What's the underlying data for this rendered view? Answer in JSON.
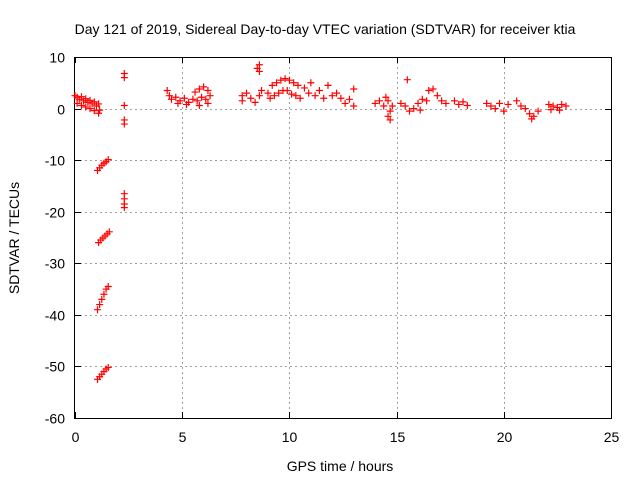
{
  "chart_data": {
    "type": "scatter",
    "title": "Day 121 of 2019, Sidereal Day-to-day VTEC variation (SDTVAR) for receiver ktia",
    "xlabel": "GPS time / hours",
    "ylabel": "SDTVAR / TECUs",
    "xlim": [
      0,
      25
    ],
    "ylim": [
      -60,
      10
    ],
    "xticks": [
      "0",
      "5",
      "10",
      "15",
      "20",
      "25"
    ],
    "xtick_values": [
      0,
      5,
      10,
      15,
      20,
      25
    ],
    "yticks": [
      "10",
      "0",
      "-10",
      "-20",
      "-30",
      "-40",
      "-50",
      "-60"
    ],
    "ytick_values": [
      10,
      0,
      -10,
      -20,
      -30,
      -40,
      -50,
      -60
    ],
    "grid": true,
    "marker": "plus",
    "color": "#ff0000",
    "series": [
      {
        "points": [
          [
            0.0,
            2.5
          ],
          [
            0.1,
            2.2
          ],
          [
            0.2,
            1.8
          ],
          [
            0.3,
            2.3
          ],
          [
            0.4,
            1.5
          ],
          [
            0.5,
            1.9
          ],
          [
            0.6,
            1.2
          ],
          [
            0.7,
            1.6
          ],
          [
            0.8,
            0.9
          ],
          [
            0.9,
            1.3
          ],
          [
            1.0,
            0.5
          ],
          [
            1.1,
            0.9
          ],
          [
            1.15,
            -0.3
          ],
          [
            0.1,
            1.0
          ],
          [
            0.3,
            0.6
          ],
          [
            0.5,
            0.3
          ],
          [
            0.7,
            0.0
          ],
          [
            0.9,
            -0.4
          ],
          [
            1.1,
            -0.9
          ],
          [
            1.05,
            -12.0
          ],
          [
            1.15,
            -11.5
          ],
          [
            1.25,
            -11.0
          ],
          [
            1.35,
            -10.6
          ],
          [
            1.45,
            -10.3
          ],
          [
            1.55,
            -9.9
          ],
          [
            1.1,
            -26.0
          ],
          [
            1.2,
            -25.5
          ],
          [
            1.3,
            -25.1
          ],
          [
            1.4,
            -24.7
          ],
          [
            1.5,
            -24.3
          ],
          [
            1.6,
            -23.9
          ],
          [
            1.05,
            -39.0
          ],
          [
            1.15,
            -38.0
          ],
          [
            1.25,
            -37.0
          ],
          [
            1.35,
            -36.0
          ],
          [
            1.45,
            -35.0
          ],
          [
            1.55,
            -34.5
          ],
          [
            1.05,
            -52.5
          ],
          [
            1.15,
            -52.0
          ],
          [
            1.25,
            -51.5
          ],
          [
            1.35,
            -51.0
          ],
          [
            1.45,
            -50.5
          ],
          [
            1.55,
            -50.2
          ],
          [
            2.3,
            6.8
          ],
          [
            2.3,
            6.0
          ],
          [
            2.3,
            0.6
          ],
          [
            2.3,
            -2.2
          ],
          [
            2.3,
            -3.0
          ],
          [
            2.3,
            -16.5
          ],
          [
            2.3,
            -17.5
          ],
          [
            2.3,
            -18.5
          ],
          [
            2.3,
            -19.2
          ],
          [
            4.3,
            3.5
          ],
          [
            4.4,
            2.5
          ],
          [
            4.5,
            1.8
          ],
          [
            4.7,
            2.2
          ],
          [
            4.9,
            1.5
          ],
          [
            5.1,
            2.0
          ],
          [
            5.3,
            1.2
          ],
          [
            5.5,
            1.8
          ],
          [
            5.7,
            1.5
          ],
          [
            5.9,
            2.2
          ],
          [
            6.1,
            1.8
          ],
          [
            6.3,
            2.5
          ],
          [
            5.6,
            3.2
          ],
          [
            5.8,
            3.8
          ],
          [
            6.0,
            4.2
          ],
          [
            6.2,
            3.5
          ],
          [
            4.8,
            1.0
          ],
          [
            5.2,
            0.8
          ],
          [
            5.8,
            0.6
          ],
          [
            6.2,
            1.0
          ],
          [
            7.8,
            2.5
          ],
          [
            7.8,
            1.5
          ],
          [
            8.0,
            3.0
          ],
          [
            8.2,
            2.0
          ],
          [
            8.4,
            1.2
          ],
          [
            8.6,
            2.5
          ],
          [
            8.5,
            7.8
          ],
          [
            8.6,
            8.5
          ],
          [
            8.6,
            7.2
          ],
          [
            8.7,
            3.5
          ],
          [
            9.0,
            3.0
          ],
          [
            9.2,
            4.5
          ],
          [
            9.4,
            5.0
          ],
          [
            9.6,
            5.5
          ],
          [
            9.8,
            5.8
          ],
          [
            10.0,
            5.5
          ],
          [
            10.2,
            5.0
          ],
          [
            10.4,
            4.5
          ],
          [
            9.1,
            2.0
          ],
          [
            9.3,
            2.5
          ],
          [
            9.5,
            3.0
          ],
          [
            9.7,
            3.5
          ],
          [
            9.9,
            3.5
          ],
          [
            10.1,
            2.8
          ],
          [
            10.3,
            2.5
          ],
          [
            10.5,
            2.0
          ],
          [
            10.7,
            4.0
          ],
          [
            10.9,
            3.0
          ],
          [
            11.0,
            5.0
          ],
          [
            11.2,
            2.5
          ],
          [
            11.4,
            3.5
          ],
          [
            11.6,
            2.0
          ],
          [
            11.8,
            4.5
          ],
          [
            12.0,
            2.5
          ],
          [
            12.2,
            3.0
          ],
          [
            12.4,
            2.0
          ],
          [
            12.6,
            1.0
          ],
          [
            12.8,
            1.8
          ],
          [
            13.0,
            3.8
          ],
          [
            13.0,
            0.5
          ],
          [
            14.0,
            1.0
          ],
          [
            14.2,
            1.5
          ],
          [
            14.4,
            0.5
          ],
          [
            14.6,
            1.5
          ],
          [
            14.7,
            -0.5
          ],
          [
            14.6,
            -1.5
          ],
          [
            14.7,
            -2.2
          ],
          [
            14.8,
            0.5
          ],
          [
            14.5,
            2.2
          ],
          [
            15.2,
            1.0
          ],
          [
            15.4,
            0.5
          ],
          [
            15.5,
            5.6
          ],
          [
            15.6,
            -0.5
          ],
          [
            15.8,
            0.0
          ],
          [
            16.0,
            1.0
          ],
          [
            16.2,
            1.8
          ],
          [
            16.4,
            1.5
          ],
          [
            16.5,
            3.5
          ],
          [
            16.7,
            3.8
          ],
          [
            16.9,
            2.5
          ],
          [
            17.1,
            1.5
          ],
          [
            17.3,
            1.0
          ],
          [
            16.1,
            -0.3
          ],
          [
            17.7,
            1.5
          ],
          [
            17.9,
            0.8
          ],
          [
            18.1,
            1.3
          ],
          [
            18.3,
            0.6
          ],
          [
            19.2,
            1.0
          ],
          [
            19.4,
            0.5
          ],
          [
            19.6,
            0.0
          ],
          [
            19.8,
            1.0
          ],
          [
            20.0,
            -0.5
          ],
          [
            20.2,
            0.8
          ],
          [
            20.6,
            1.5
          ],
          [
            20.8,
            0.5
          ],
          [
            21.0,
            0.0
          ],
          [
            21.2,
            -1.0
          ],
          [
            21.3,
            -2.0
          ],
          [
            21.4,
            -1.5
          ],
          [
            21.6,
            -0.5
          ],
          [
            22.1,
            0.8
          ],
          [
            22.3,
            0.5
          ],
          [
            22.5,
            0.2
          ],
          [
            22.7,
            0.8
          ],
          [
            22.9,
            0.5
          ],
          [
            22.2,
            -0.2
          ],
          [
            22.6,
            -0.3
          ]
        ]
      }
    ]
  }
}
